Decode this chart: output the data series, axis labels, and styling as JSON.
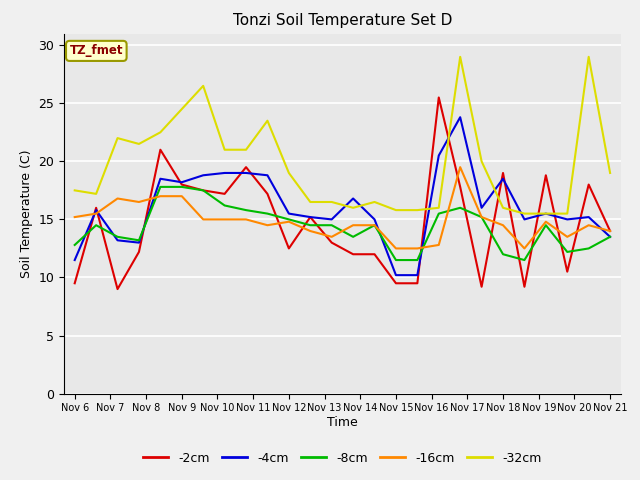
{
  "title": "Tonzi Soil Temperature Set D",
  "xlabel": "Time",
  "ylabel": "Soil Temperature (C)",
  "annotation": "TZ_fmet",
  "ylim": [
    0,
    31
  ],
  "yticks": [
    0,
    5,
    10,
    15,
    20,
    25,
    30
  ],
  "x_labels": [
    "Nov 6",
    "Nov 7",
    "Nov 8",
    "Nov 9",
    "Nov 10",
    "Nov 11",
    "Nov 12",
    "Nov 13",
    "Nov 14",
    "Nov 15",
    "Nov 16",
    "Nov 17",
    "Nov 18",
    "Nov 19",
    "Nov 20",
    "Nov 21"
  ],
  "series": {
    "-2cm": {
      "color": "#dd0000",
      "data": [
        9.5,
        16.0,
        9.0,
        12.2,
        21.0,
        18.0,
        17.5,
        17.2,
        19.5,
        17.2,
        12.5,
        15.2,
        13.0,
        12.0,
        12.0,
        9.5,
        9.5,
        25.5,
        17.8,
        9.2,
        19.0,
        9.2,
        18.8,
        10.5,
        18.0,
        14.0
      ]
    },
    "-4cm": {
      "color": "#0000dd",
      "data": [
        11.5,
        15.8,
        13.2,
        13.0,
        18.5,
        18.2,
        18.8,
        19.0,
        19.0,
        18.8,
        15.5,
        15.2,
        15.0,
        16.8,
        15.0,
        10.2,
        10.2,
        20.5,
        23.8,
        16.0,
        18.5,
        15.0,
        15.5,
        15.0,
        15.2,
        13.5
      ]
    },
    "-8cm": {
      "color": "#00bb00",
      "data": [
        12.8,
        14.5,
        13.5,
        13.2,
        17.8,
        17.8,
        17.5,
        16.2,
        15.8,
        15.5,
        15.0,
        14.5,
        14.5,
        13.5,
        14.5,
        11.5,
        11.5,
        15.5,
        16.0,
        15.2,
        12.0,
        11.5,
        14.5,
        12.2,
        12.5,
        13.5
      ]
    },
    "-16cm": {
      "color": "#ff8800",
      "data": [
        15.2,
        15.5,
        16.8,
        16.5,
        17.0,
        17.0,
        15.0,
        15.0,
        15.0,
        14.5,
        14.8,
        14.0,
        13.5,
        14.5,
        14.5,
        12.5,
        12.5,
        12.8,
        19.5,
        15.2,
        14.5,
        12.5,
        14.8,
        13.5,
        14.5,
        14.0
      ]
    },
    "-32cm": {
      "color": "#dddd00",
      "data": [
        17.5,
        17.2,
        22.0,
        21.5,
        22.5,
        24.5,
        26.5,
        21.0,
        21.0,
        23.5,
        19.0,
        16.5,
        16.5,
        16.0,
        16.5,
        15.8,
        15.8,
        16.0,
        29.0,
        20.0,
        16.0,
        15.5,
        15.5,
        15.5,
        29.0,
        19.0
      ]
    }
  },
  "plot_bg": "#e8e8e8",
  "fig_bg": "#f0f0f0",
  "grid_color": "#ffffff",
  "legend_labels": [
    "-2cm",
    "-4cm",
    "-8cm",
    "-16cm",
    "-32cm"
  ],
  "legend_colors": [
    "#dd0000",
    "#0000dd",
    "#00bb00",
    "#ff8800",
    "#dddd00"
  ],
  "linewidth": 1.5
}
